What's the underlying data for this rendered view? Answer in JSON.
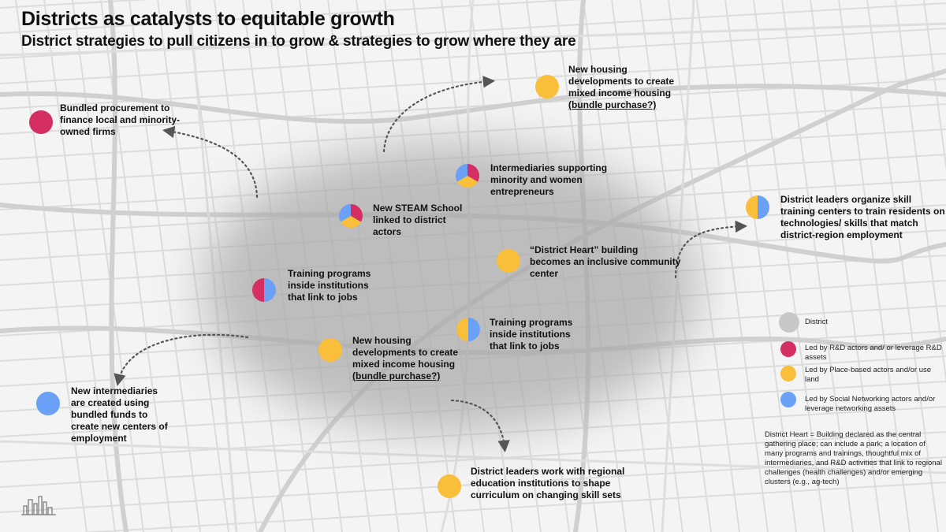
{
  "title": "Districts as catalysts to equitable growth",
  "subtitle": "District strategies to pull citizens in to grow & strategies to grow where they are",
  "colors": {
    "rd": "#d52e63",
    "place": "#f9be3a",
    "social": "#6aa0f6",
    "district": "#c8c8c8"
  },
  "items": [
    {
      "id": "bundled-procurement",
      "colors": [
        "rd"
      ],
      "lines": [
        "Bundled procurement to",
        "finance local and minority-",
        "owned firms"
      ],
      "underline_last": false
    },
    {
      "id": "housing-top",
      "colors": [
        "place"
      ],
      "lines": [
        "New housing",
        "developments to create",
        "mixed income housing",
        "(bundle purchase?)"
      ],
      "underline_last": true
    },
    {
      "id": "intermediaries-minority",
      "colors": [
        "rd",
        "place",
        "social"
      ],
      "lines": [
        "Intermediaries supporting",
        "minority and women",
        "entrepreneurs"
      ],
      "underline_last": false
    },
    {
      "id": "steam-school",
      "colors": [
        "rd",
        "place",
        "social"
      ],
      "lines": [
        "New STEAM School",
        "linked to district",
        "actors"
      ],
      "underline_last": false
    },
    {
      "id": "skill-training-centers",
      "colors": [
        "place",
        "social"
      ],
      "lines": [
        "District leaders organize skill",
        "training centers to train residents on",
        "technologies/ skills that match",
        "district-region employment"
      ],
      "underline_last": false
    },
    {
      "id": "district-heart",
      "colors": [
        "place"
      ],
      "lines": [
        "“District Heart” building",
        "becomes an inclusive community",
        "center"
      ],
      "underline_last": false
    },
    {
      "id": "training-left",
      "colors": [
        "rd",
        "social"
      ],
      "lines": [
        "Training programs",
        "inside institutions",
        "that link to jobs"
      ],
      "underline_last": false
    },
    {
      "id": "training-right",
      "colors": [
        "place",
        "social"
      ],
      "lines": [
        "Training programs",
        "inside institutions",
        "that link to jobs"
      ],
      "underline_last": false
    },
    {
      "id": "housing-center",
      "colors": [
        "place"
      ],
      "lines": [
        "New housing",
        "developments to create",
        "mixed income housing",
        "(bundle purchase?)"
      ],
      "underline_last": true
    },
    {
      "id": "new-intermediaries",
      "colors": [
        "social"
      ],
      "lines": [
        "New intermediaries",
        "are created using",
        "bundled funds to",
        "create new centers of",
        "employment"
      ],
      "underline_last": false
    },
    {
      "id": "regional-education",
      "colors": [
        "place"
      ],
      "lines": [
        "District leaders work with regional",
        "education institutions to shape",
        "curriculum on changing skill sets"
      ],
      "underline_last": false
    }
  ],
  "legend": [
    {
      "id": "district",
      "color": "district",
      "lines": [
        "District"
      ]
    },
    {
      "id": "rd",
      "color": "rd",
      "lines": [
        "Led by R&D actors and/ or leverage R&D",
        "assets"
      ]
    },
    {
      "id": "place",
      "color": "place",
      "lines": [
        "Led by Place-based actors and/or use",
        "land"
      ]
    },
    {
      "id": "social",
      "color": "social",
      "lines": [
        "Led by Social Networking actors and/or",
        "leverage networking assets"
      ]
    }
  ],
  "note": [
    "District Heart = Building declared as the central",
    "gathering place; can include a park; a location of",
    "many programs and trainings, thoughtful mix of",
    "intermediaries, and R&D activities that link to regional",
    "challenges (health challenges) and/or emerging",
    "clusters (e.g., ag-tech)"
  ]
}
